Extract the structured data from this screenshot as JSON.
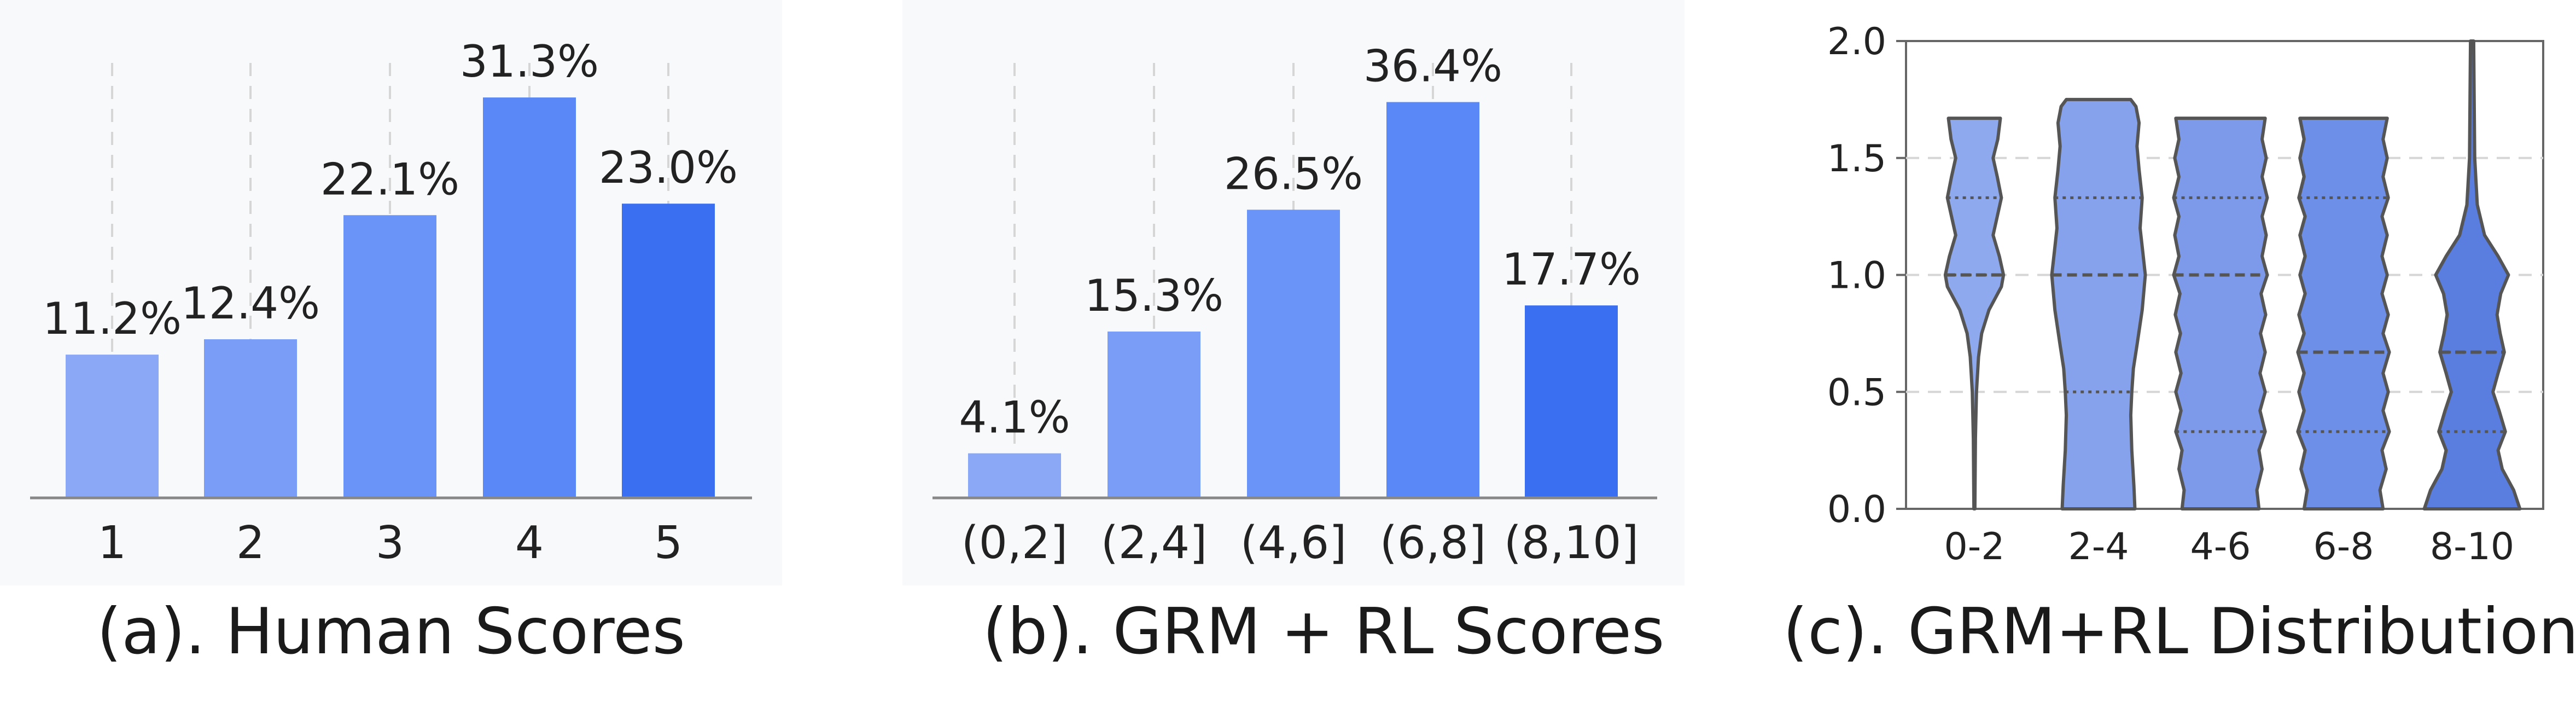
{
  "colors": {
    "panel_bg": "#f8f9fb",
    "bar_colors": [
      "#8aa8f5",
      "#7a9ef8",
      "#6a94f8",
      "#5a88f6",
      "#3b6ff2"
    ],
    "violin_colors": [
      "#8ea9ee",
      "#86a2ec",
      "#7d9aea",
      "#6e8fe7",
      "#5a7ee0"
    ],
    "violin_stroke": "#555555",
    "axis": "#888888",
    "grid": "#d6d6d6",
    "text": "#222222"
  },
  "captions": {
    "a": "(a). Human Scores",
    "b": "(b). GRM + RL Scores",
    "c": "(c). GRM+RL Distributions"
  },
  "chart_data": [
    {
      "type": "bar",
      "panel": "a",
      "title": "",
      "xlabel": "",
      "ylabel": "",
      "categories": [
        "1",
        "2",
        "3",
        "4",
        "5"
      ],
      "values": [
        11.2,
        12.4,
        22.1,
        31.3,
        23.0
      ],
      "data_labels": [
        "11.2%",
        "12.4%",
        "22.1%",
        "31.3%",
        "23.0%"
      ],
      "ylim": [
        0,
        34
      ],
      "grid": "vertical dashed"
    },
    {
      "type": "bar",
      "panel": "b",
      "title": "",
      "xlabel": "",
      "ylabel": "",
      "categories": [
        "(0,2]",
        "(2,4]",
        "(4,6]",
        "(6,8]",
        "(8,10]"
      ],
      "values": [
        4.1,
        15.3,
        26.5,
        36.4,
        17.7
      ],
      "data_labels": [
        "4.1%",
        "15.3%",
        "26.5%",
        "36.4%",
        "17.7%"
      ],
      "ylim": [
        0,
        40
      ],
      "grid": "vertical dashed"
    },
    {
      "type": "violin",
      "panel": "c",
      "title": "",
      "xlabel": "",
      "ylabel": "",
      "categories": [
        "0-2",
        "2-4",
        "4-6",
        "6-8",
        "8-10"
      ],
      "ylim": [
        0.0,
        2.0
      ],
      "yticks": [
        "0.0",
        "0.5",
        "1.0",
        "1.5",
        "2.0"
      ],
      "grid": "horizontal dashed",
      "series": [
        {
          "name": "0-2",
          "min": 0.0,
          "max": 1.67,
          "quartiles": [
            1.0,
            1.0,
            1.33
          ],
          "profile": [
            [
              0.0,
              0.01
            ],
            [
              0.3,
              0.02
            ],
            [
              0.5,
              0.04
            ],
            [
              0.65,
              0.08
            ],
            [
              0.75,
              0.14
            ],
            [
              0.85,
              0.28
            ],
            [
              0.95,
              0.52
            ],
            [
              1.0,
              0.56
            ],
            [
              1.08,
              0.48
            ],
            [
              1.17,
              0.36
            ],
            [
              1.27,
              0.46
            ],
            [
              1.33,
              0.52
            ],
            [
              1.42,
              0.44
            ],
            [
              1.5,
              0.36
            ],
            [
              1.58,
              0.45
            ],
            [
              1.67,
              0.5
            ]
          ]
        },
        {
          "name": "2-4",
          "min": 0.0,
          "max": 1.75,
          "quartiles": [
            0.5,
            1.0,
            1.33
          ],
          "profile": [
            [
              0.0,
              0.7
            ],
            [
              0.1,
              0.68
            ],
            [
              0.25,
              0.64
            ],
            [
              0.4,
              0.62
            ],
            [
              0.5,
              0.64
            ],
            [
              0.6,
              0.67
            ],
            [
              0.7,
              0.74
            ],
            [
              0.85,
              0.84
            ],
            [
              1.0,
              0.9
            ],
            [
              1.1,
              0.85
            ],
            [
              1.2,
              0.8
            ],
            [
              1.33,
              0.84
            ],
            [
              1.45,
              0.78
            ],
            [
              1.55,
              0.74
            ],
            [
              1.65,
              0.78
            ],
            [
              1.72,
              0.72
            ],
            [
              1.75,
              0.62
            ]
          ]
        },
        {
          "name": "4-6",
          "min": 0.0,
          "max": 1.67,
          "quartiles": [
            0.33,
            1.0,
            1.33
          ],
          "profile": [
            [
              0.0,
              0.74
            ],
            [
              0.08,
              0.7
            ],
            [
              0.17,
              0.8
            ],
            [
              0.25,
              0.74
            ],
            [
              0.33,
              0.86
            ],
            [
              0.42,
              0.76
            ],
            [
              0.5,
              0.86
            ],
            [
              0.58,
              0.76
            ],
            [
              0.67,
              0.86
            ],
            [
              0.75,
              0.77
            ],
            [
              0.83,
              0.87
            ],
            [
              0.92,
              0.78
            ],
            [
              1.0,
              0.9
            ],
            [
              1.08,
              0.8
            ],
            [
              1.17,
              0.88
            ],
            [
              1.25,
              0.8
            ],
            [
              1.33,
              0.9
            ],
            [
              1.42,
              0.8
            ],
            [
              1.5,
              0.88
            ],
            [
              1.58,
              0.8
            ],
            [
              1.67,
              0.86
            ]
          ]
        },
        {
          "name": "6-8",
          "min": 0.0,
          "max": 1.67,
          "quartiles": [
            0.33,
            0.67,
            1.33
          ],
          "profile": [
            [
              0.0,
              0.76
            ],
            [
              0.08,
              0.7
            ],
            [
              0.17,
              0.82
            ],
            [
              0.25,
              0.74
            ],
            [
              0.33,
              0.88
            ],
            [
              0.42,
              0.76
            ],
            [
              0.5,
              0.86
            ],
            [
              0.58,
              0.76
            ],
            [
              0.67,
              0.88
            ],
            [
              0.75,
              0.76
            ],
            [
              0.83,
              0.86
            ],
            [
              0.92,
              0.74
            ],
            [
              1.0,
              0.84
            ],
            [
              1.08,
              0.74
            ],
            [
              1.17,
              0.84
            ],
            [
              1.25,
              0.74
            ],
            [
              1.33,
              0.86
            ],
            [
              1.42,
              0.76
            ],
            [
              1.5,
              0.84
            ],
            [
              1.58,
              0.76
            ],
            [
              1.67,
              0.84
            ]
          ]
        },
        {
          "name": "8-10",
          "min": 0.0,
          "max": 2.0,
          "quartiles": [
            0.33,
            0.67,
            0.67
          ],
          "profile": [
            [
              0.0,
              0.92
            ],
            [
              0.08,
              0.8
            ],
            [
              0.17,
              0.58
            ],
            [
              0.25,
              0.5
            ],
            [
              0.33,
              0.64
            ],
            [
              0.42,
              0.52
            ],
            [
              0.5,
              0.4
            ],
            [
              0.58,
              0.5
            ],
            [
              0.67,
              0.62
            ],
            [
              0.75,
              0.54
            ],
            [
              0.83,
              0.48
            ],
            [
              0.92,
              0.55
            ],
            [
              1.0,
              0.7
            ],
            [
              1.08,
              0.5
            ],
            [
              1.17,
              0.24
            ],
            [
              1.3,
              0.1
            ],
            [
              1.5,
              0.05
            ],
            [
              1.75,
              0.04
            ],
            [
              2.0,
              0.03
            ]
          ]
        }
      ]
    }
  ]
}
